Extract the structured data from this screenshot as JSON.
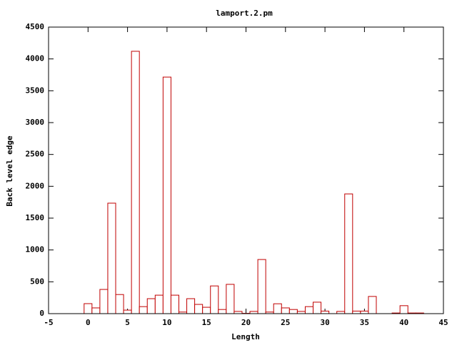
{
  "chart_data": {
    "type": "bar",
    "title": "lamport.2.pm",
    "x_label": "Length",
    "y_label": "Back level edge",
    "x": [
      0,
      1,
      2,
      3,
      4,
      5,
      6,
      7,
      8,
      9,
      10,
      11,
      12,
      13,
      14,
      15,
      16,
      17,
      18,
      19,
      20,
      21,
      22,
      23,
      24,
      25,
      26,
      27,
      28,
      29,
      30,
      31,
      32,
      33,
      34,
      35,
      36,
      37,
      38,
      39,
      40,
      41,
      42
    ],
    "values": [
      157,
      90,
      380,
      1735,
      300,
      55,
      4120,
      110,
      235,
      290,
      3715,
      290,
      25,
      235,
      145,
      100,
      435,
      65,
      460,
      35,
      5,
      35,
      850,
      25,
      155,
      90,
      65,
      35,
      110,
      180,
      40,
      0,
      35,
      1880,
      40,
      40,
      270,
      0,
      0,
      10,
      125,
      10,
      10
    ],
    "color": "#c00000",
    "xlim": [
      -5,
      45
    ],
    "xticks": [
      -5,
      0,
      5,
      10,
      15,
      20,
      25,
      30,
      35,
      40,
      45
    ],
    "ylim": [
      0,
      4500
    ],
    "yticks": [
      0,
      500,
      1000,
      1500,
      2000,
      2500,
      3000,
      3500,
      4000,
      4500
    ],
    "grid": false
  }
}
